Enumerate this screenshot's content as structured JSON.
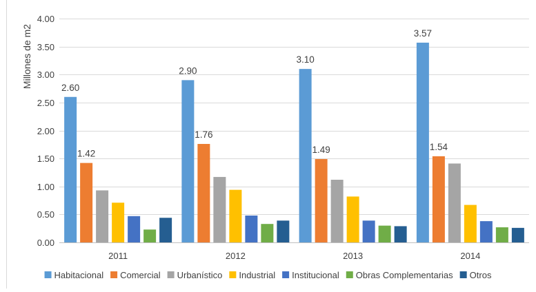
{
  "chart_data": {
    "type": "bar",
    "ylabel": "Millones de m2",
    "ylim": [
      0,
      4.0
    ],
    "ytick_step": 0.5,
    "ytick_labels": [
      "0.00",
      "0.50",
      "1.00",
      "1.50",
      "2.00",
      "2.50",
      "3.00",
      "3.50",
      "4.00"
    ],
    "grid": true,
    "legend_position": "bottom",
    "categories": [
      "2011",
      "2012",
      "2013",
      "2014"
    ],
    "series": [
      {
        "name": "Habitacional",
        "color": "#5B9BD5",
        "values": [
          2.6,
          2.9,
          3.1,
          3.57
        ],
        "labels": [
          "2.60",
          "2.90",
          "3.10",
          "3.57"
        ]
      },
      {
        "name": "Comercial",
        "color": "#ED7D31",
        "values": [
          1.42,
          1.76,
          1.49,
          1.54
        ],
        "labels": [
          "1.42",
          "1.76",
          "1.49",
          "1.54"
        ]
      },
      {
        "name": "Urbanístico",
        "color": "#A5A5A5",
        "values": [
          0.93,
          1.17,
          1.12,
          1.41
        ],
        "labels": [
          "",
          "",
          "",
          ""
        ]
      },
      {
        "name": "Industrial",
        "color": "#FFC000",
        "values": [
          0.71,
          0.94,
          0.82,
          0.67
        ],
        "labels": [
          "",
          "",
          "",
          ""
        ]
      },
      {
        "name": "Institucional",
        "color": "#4472C4",
        "values": [
          0.47,
          0.48,
          0.39,
          0.38
        ],
        "labels": [
          "",
          "",
          "",
          ""
        ]
      },
      {
        "name": "Obras Complementarias",
        "color": "#70AD47",
        "values": [
          0.23,
          0.33,
          0.3,
          0.27
        ],
        "labels": [
          "",
          "",
          "",
          ""
        ]
      },
      {
        "name": "Otros",
        "color": "#255E91",
        "values": [
          0.44,
          0.39,
          0.29,
          0.26
        ],
        "labels": [
          "",
          "",
          "",
          ""
        ]
      }
    ]
  }
}
